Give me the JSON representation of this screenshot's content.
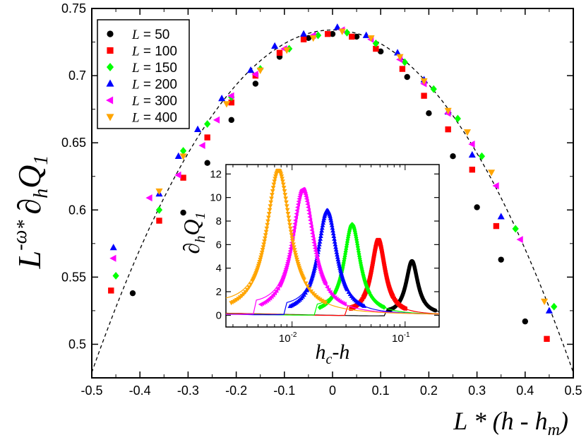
{
  "chart_data": [
    {
      "type": "scatter",
      "xlabel": {
        "prefix": "L",
        "op": " * (h - h",
        "sub": "m",
        "close": ")"
      },
      "ylabel": {
        "base": "L",
        "sup": "-ω",
        "op": "*",
        "d": "∂",
        "dsub": "h",
        "Q": "Q",
        "qsub": "1"
      },
      "xlim": [
        -0.5,
        0.5
      ],
      "ylim": [
        0.475,
        0.75
      ],
      "xticks": [
        "-0.5",
        "-0.4",
        "-0.3",
        "-0.2",
        "-0.1",
        "0",
        "0.1",
        "0.2",
        "0.3",
        "0.4",
        "0.5"
      ],
      "yticks": [
        "0.5",
        "0.55",
        "0.6",
        "0.65",
        "0.7",
        "0.75"
      ],
      "legend": {
        "placement": "top-left"
      },
      "fit_curve": {
        "style": "dashed",
        "color": "#000000",
        "vertex_x": 0.0,
        "vertex_y": 0.734,
        "curvature": 1.02
      },
      "series": [
        {
          "name": "L = 50",
          "label": "L",
          "eq": " = 50",
          "color": "#000000",
          "marker": "circle",
          "points": [
            [
              -0.415,
              0.538
            ],
            [
              -0.31,
              0.598
            ],
            [
              -0.26,
              0.635
            ],
            [
              -0.21,
              0.667
            ],
            [
              -0.16,
              0.694
            ],
            [
              -0.11,
              0.714
            ],
            [
              -0.05,
              0.728
            ],
            [
              0.0,
              0.731
            ],
            [
              0.05,
              0.729
            ],
            [
              0.1,
              0.718
            ],
            [
              0.155,
              0.699
            ],
            [
              0.2,
              0.672
            ],
            [
              0.25,
              0.64
            ],
            [
              0.3,
              0.602
            ],
            [
              0.35,
              0.563
            ],
            [
              0.4,
              0.517
            ]
          ]
        },
        {
          "name": "L = 100",
          "label": "L",
          "eq": " = 100",
          "color": "#ff0000",
          "marker": "square",
          "points": [
            [
              -0.46,
              0.54
            ],
            [
              -0.36,
              0.592
            ],
            [
              -0.31,
              0.624
            ],
            [
              -0.26,
              0.654
            ],
            [
              -0.21,
              0.68
            ],
            [
              -0.16,
              0.7
            ],
            [
              -0.11,
              0.717
            ],
            [
              -0.06,
              0.727
            ],
            [
              -0.01,
              0.731
            ],
            [
              0.04,
              0.729
            ],
            [
              0.09,
              0.72
            ],
            [
              0.145,
              0.705
            ],
            [
              0.19,
              0.685
            ],
            [
              0.24,
              0.66
            ],
            [
              0.29,
              0.63
            ],
            [
              0.34,
              0.588
            ],
            [
              0.445,
              0.504
            ]
          ]
        },
        {
          "name": "L = 150",
          "label": "L",
          "eq": " = 150",
          "color": "#00ff00",
          "marker": "diamond",
          "points": [
            [
              -0.45,
              0.551
            ],
            [
              -0.36,
              0.6
            ],
            [
              -0.31,
              0.644
            ],
            [
              -0.26,
              0.664
            ],
            [
              -0.21,
              0.684
            ],
            [
              -0.15,
              0.705
            ],
            [
              -0.09,
              0.72
            ],
            [
              -0.03,
              0.73
            ],
            [
              0.03,
              0.732
            ],
            [
              0.09,
              0.724
            ],
            [
              0.15,
              0.71
            ],
            [
              0.21,
              0.69
            ],
            [
              0.26,
              0.668
            ],
            [
              0.31,
              0.64
            ],
            [
              0.38,
              0.586
            ],
            [
              0.46,
              0.528
            ]
          ]
        },
        {
          "name": "L = 200",
          "label": "L",
          "eq": " = 200",
          "color": "#0000ff",
          "marker": "triangle-up",
          "points": [
            [
              -0.455,
              0.572
            ],
            [
              -0.36,
              0.612
            ],
            [
              -0.32,
              0.64
            ],
            [
              -0.28,
              0.66
            ],
            [
              -0.23,
              0.683
            ],
            [
              -0.17,
              0.704
            ],
            [
              -0.12,
              0.722
            ],
            [
              -0.06,
              0.731
            ],
            [
              0.01,
              0.736
            ],
            [
              0.07,
              0.73
            ],
            [
              0.135,
              0.717
            ],
            [
              0.19,
              0.697
            ],
            [
              0.24,
              0.673
            ],
            [
              0.29,
              0.641
            ],
            [
              0.35,
              0.595
            ],
            [
              0.45,
              0.525
            ]
          ]
        },
        {
          "name": "L = 300",
          "label": "L",
          "eq": " = 300",
          "color": "#ff00ff",
          "marker": "triangle-left",
          "points": [
            [
              -0.455,
              0.564
            ],
            [
              -0.38,
              0.609
            ],
            [
              -0.32,
              0.626
            ],
            [
              -0.27,
              0.648
            ],
            [
              -0.24,
              0.667
            ],
            [
              -0.21,
              0.685
            ],
            [
              -0.16,
              0.701
            ],
            [
              -0.1,
              0.72
            ],
            [
              -0.04,
              0.73
            ],
            [
              0.02,
              0.734
            ],
            [
              0.08,
              0.727
            ],
            [
              0.14,
              0.712
            ],
            [
              0.19,
              0.694
            ],
            [
              0.24,
              0.672
            ],
            [
              0.29,
              0.649
            ],
            [
              0.34,
              0.618
            ],
            [
              0.39,
              0.578
            ]
          ]
        },
        {
          "name": "L = 400",
          "label": "L",
          "eq": " = 400",
          "color": "#ffa500",
          "marker": "triangle-down",
          "points": [
            [
              -0.36,
              0.614
            ],
            [
              -0.31,
              0.64
            ],
            [
              -0.22,
              0.679
            ],
            [
              -0.15,
              0.704
            ],
            [
              -0.095,
              0.719
            ],
            [
              -0.04,
              0.728
            ],
            [
              0.02,
              0.733
            ],
            [
              0.08,
              0.728
            ],
            [
              0.14,
              0.714
            ],
            [
              0.19,
              0.696
            ],
            [
              0.24,
              0.674
            ],
            [
              0.28,
              0.658
            ],
            [
              0.33,
              0.628
            ],
            [
              0.44,
              0.532
            ]
          ]
        }
      ]
    },
    {
      "type": "line",
      "xscale": "log",
      "xlabel": {
        "h": "h",
        "sub": "c",
        "rest": "-h"
      },
      "ylabel": {
        "d": "∂",
        "dsub": "h",
        "Q": "Q",
        "qsub": "1"
      },
      "xlim": [
        0.0026,
        0.2
      ],
      "ylim": [
        -1,
        12.8
      ],
      "xticks": [
        {
          "base": "10",
          "exp": "-2",
          "value": 0.01
        },
        {
          "base": "10",
          "exp": "-1",
          "value": 0.1
        }
      ],
      "yticks": [
        "0",
        "2",
        "4",
        "6",
        "8",
        "10",
        "12"
      ],
      "peaks": [
        {
          "color": "#000000",
          "marker": "circle",
          "h_peak": 0.115,
          "height": 4.6,
          "width": 0.095
        },
        {
          "color": "#ff0000",
          "marker": "square",
          "h_peak": 0.058,
          "height": 6.4,
          "width": 0.11
        },
        {
          "color": "#00ff00",
          "marker": "diamond",
          "h_peak": 0.034,
          "height": 7.7,
          "width": 0.13
        },
        {
          "color": "#0000ff",
          "marker": "triangle-up",
          "h_peak": 0.0205,
          "height": 8.9,
          "width": 0.15
        },
        {
          "color": "#ff00ff",
          "marker": "triangle-left",
          "h_peak": 0.0125,
          "height": 10.7,
          "width": 0.17
        },
        {
          "color": "#ffa500",
          "marker": "triangle-down",
          "h_peak": 0.0076,
          "height": 12.3,
          "width": 0.19
        }
      ]
    }
  ]
}
